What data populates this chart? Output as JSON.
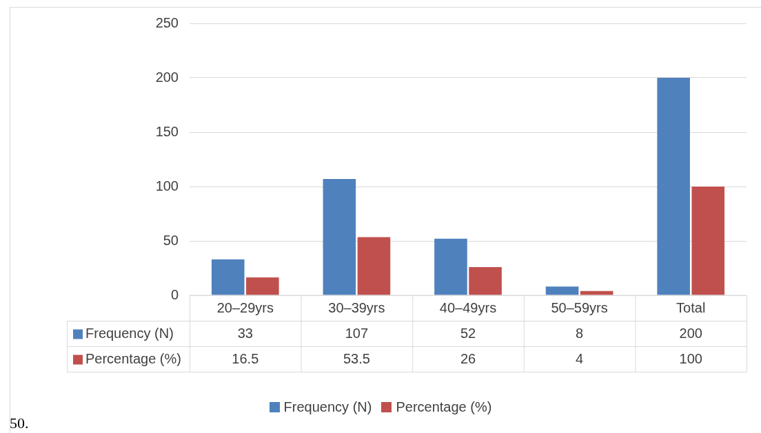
{
  "chart_data": {
    "type": "bar",
    "categories": [
      "20–29yrs",
      "30–39yrs",
      "40–49yrs",
      "50–59yrs",
      "Total"
    ],
    "series": [
      {
        "name": "Frequency (N)",
        "color": "#4f81bd",
        "values": [
          33,
          107,
          52,
          8,
          200
        ]
      },
      {
        "name": "Percentage (%)",
        "color": "#c0504d",
        "values": [
          16.5,
          53.5,
          26,
          4,
          100
        ]
      }
    ],
    "ylim": [
      0,
      250
    ],
    "yticks": [
      0,
      50,
      100,
      150,
      200,
      250
    ],
    "grid": "y",
    "legend": "bottom",
    "data_labels": true,
    "annotations": [
      "50."
    ]
  }
}
